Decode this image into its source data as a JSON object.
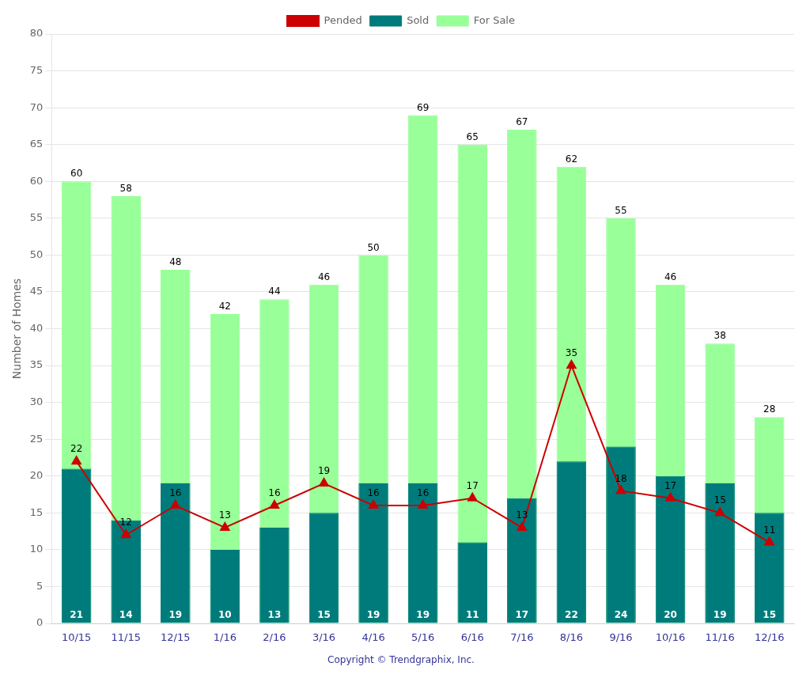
{
  "chart_data": {
    "type": "bar",
    "categories": [
      "10/15",
      "11/15",
      "12/15",
      "1/16",
      "2/16",
      "3/16",
      "4/16",
      "5/16",
      "6/16",
      "7/16",
      "8/16",
      "9/16",
      "10/16",
      "11/16",
      "12/16"
    ],
    "series": [
      {
        "name": "For Sale",
        "type": "bar",
        "color": "#99ff99",
        "values": [
          60,
          58,
          48,
          42,
          44,
          46,
          50,
          69,
          65,
          67,
          62,
          55,
          46,
          38,
          28
        ]
      },
      {
        "name": "Sold",
        "type": "bar",
        "color": "#007b7b",
        "values": [
          21,
          14,
          19,
          10,
          13,
          15,
          19,
          19,
          11,
          17,
          22,
          24,
          20,
          19,
          15
        ]
      },
      {
        "name": "Pended",
        "type": "line",
        "color": "#cc0000",
        "marker": "triangle",
        "line_style": "solid",
        "values": [
          22,
          12,
          16,
          13,
          16,
          19,
          16,
          16,
          17,
          13,
          35,
          18,
          17,
          15,
          11
        ]
      }
    ],
    "ylabel": "Number of Homes",
    "annotations": [
      "Copyright © Trendgraphix, Inc."
    ],
    "ylim": [
      0,
      80
    ],
    "yticks": [
      0,
      5,
      10,
      15,
      20,
      25,
      30,
      35,
      40,
      45,
      50,
      55,
      60,
      65,
      70,
      75,
      80
    ],
    "grid": true,
    "legend": "top",
    "data_labels": true
  }
}
